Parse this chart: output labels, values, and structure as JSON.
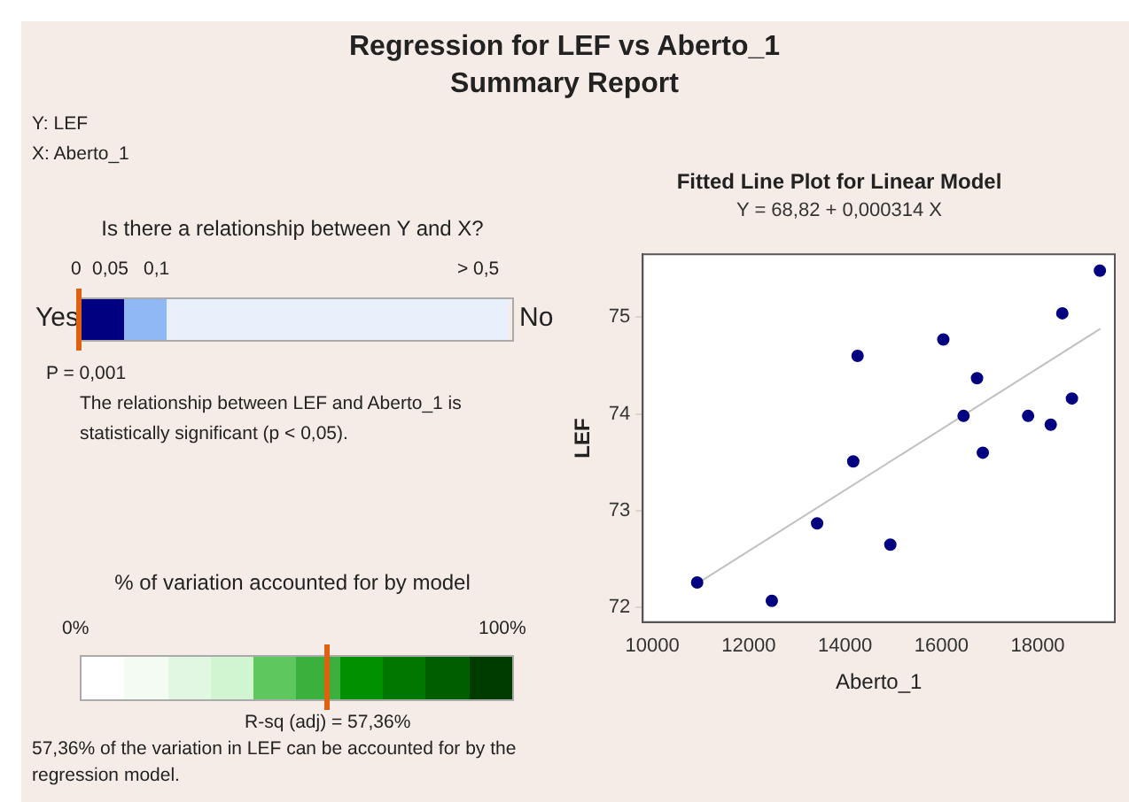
{
  "chart_data": [
    {
      "type": "other",
      "title": "Regression for LEF vs Aberto_1",
      "subtitle": "Summary Report",
      "annotations": [
        "Y: LEF",
        "X: Aberto_1",
        "Is there a relationship between Y and X?",
        "0",
        "0,05",
        "0,1",
        "> 0,5",
        "Yes",
        "No",
        "P = 0,001",
        "The relationship between LEF and Aberto_1 is statistically significant (p < 0,05).",
        "% of variation accounted for by model",
        "0%",
        "100%",
        "R-sq (adj) = 57,36%",
        "57,36% of the variation in LEF can be accounted for by the regression model."
      ]
    },
    {
      "type": "scatter",
      "title": "Fitted Line Plot for Linear Model",
      "subtitle": "Y = 68,82 + 0,000314 X",
      "xlabel": "Aberto_1",
      "ylabel": "LEF",
      "xlim": [
        9800,
        19600
      ],
      "xticks": [
        10000,
        12000,
        14000,
        16000,
        18000
      ],
      "ylim": [
        71.85,
        75.65
      ],
      "yticks": [
        72,
        73,
        74,
        75
      ],
      "grid": false,
      "legend": false,
      "series": [
        {
          "color": "#000080",
          "marker": "circle",
          "x": [
            10930,
            12480,
            13420,
            14170,
            14260,
            14940,
            16040,
            16460,
            16740,
            16860,
            17800,
            18270,
            18510,
            18710,
            19290
          ],
          "values": [
            72.26,
            72.07,
            72.87,
            73.51,
            74.6,
            72.65,
            74.77,
            73.98,
            74.37,
            73.6,
            73.98,
            73.89,
            75.04,
            74.16,
            75.48
          ]
        },
        {
          "type": "line",
          "marker": "none",
          "color": "#c0c0c0",
          "x": [
            11000,
            19300
          ],
          "values": [
            72.27,
            74.88
          ]
        }
      ]
    }
  ]
}
